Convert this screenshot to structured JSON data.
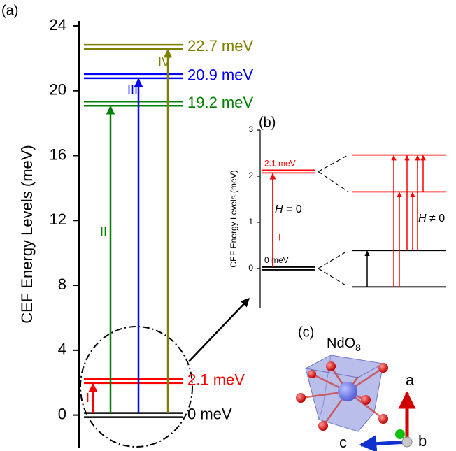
{
  "chart_data": [
    {
      "type": "levels",
      "panel_label": "(a)",
      "y_label": "CEF Energy Levels (meV)",
      "ylim": [
        -2,
        24.3
      ],
      "yticks": [
        0,
        4,
        8,
        12,
        16,
        20,
        24
      ],
      "values": [
        0,
        2.1,
        19.2,
        20.9,
        22.7
      ],
      "value_labels": [
        "0 meV",
        "2.1 meV",
        "19.2 meV",
        "20.9 meV",
        "22.7 meV"
      ],
      "colors": [
        "#000000",
        "#ff0000",
        "#008000",
        "#0000ff",
        "#808000"
      ],
      "transition_labels": [
        null,
        "I",
        "II",
        "III",
        "IV"
      ]
    },
    {
      "type": "levels",
      "panel_label": "(b)",
      "y_label": "CEF Energy Levels (meV)",
      "ylim": [
        -0.85,
        3
      ],
      "yticks": [
        0,
        1,
        2,
        3
      ],
      "values": [
        0,
        2.1
      ],
      "value_labels": [
        "0 meV",
        "2.1 meV"
      ],
      "colors": [
        "#000000",
        "#ff0000"
      ],
      "transition_labels": [
        null,
        "I"
      ],
      "field_levels": [
        2.46,
        1.66,
        0.39,
        -0.4
      ],
      "zero_field_label": {
        "symbol": "H",
        "rest": "= 0"
      },
      "field_label": {
        "symbol": "H",
        "rest": "≠ 0"
      }
    }
  ],
  "panel_c": {
    "panel_label": "(c)",
    "formula": "NdO",
    "formula_subscript": "8",
    "axis_a": "a",
    "axis_b": "b",
    "axis_c": "c"
  }
}
